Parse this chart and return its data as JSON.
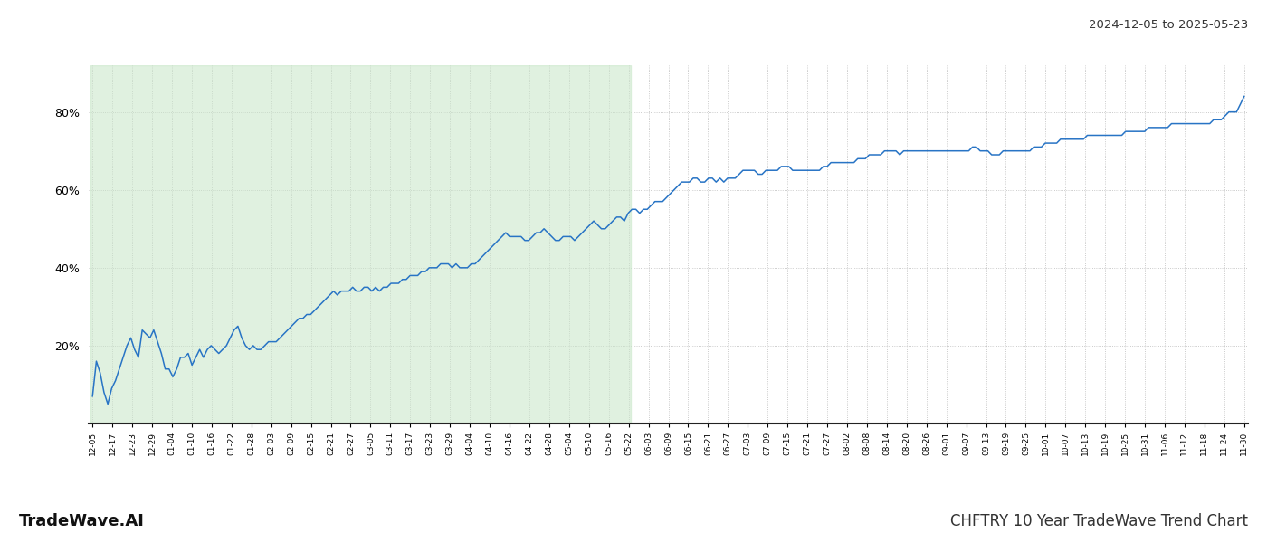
{
  "title_top_right": "2024-12-05 to 2025-05-23",
  "title_bottom_left": "TradeWave.AI",
  "title_bottom_right": "CHFTRY 10 Year TradeWave Trend Chart",
  "line_color": "#2874c5",
  "shaded_region_color": "#c8e6c8",
  "shaded_region_alpha": 0.55,
  "background_color": "#ffffff",
  "grid_color": "#bbbbbb",
  "yticks": [
    20,
    40,
    60,
    80
  ],
  "ylim": [
    0,
    92
  ],
  "x_labels": [
    "12-05",
    "12-17",
    "12-23",
    "12-29",
    "01-04",
    "01-10",
    "01-16",
    "01-22",
    "01-28",
    "02-03",
    "02-09",
    "02-15",
    "02-21",
    "02-27",
    "03-05",
    "03-11",
    "03-17",
    "03-23",
    "03-29",
    "04-04",
    "04-10",
    "04-16",
    "04-22",
    "04-28",
    "05-04",
    "05-10",
    "05-16",
    "05-22",
    "06-03",
    "06-09",
    "06-15",
    "06-21",
    "06-27",
    "07-03",
    "07-09",
    "07-15",
    "07-21",
    "07-27",
    "08-02",
    "08-08",
    "08-14",
    "08-20",
    "08-26",
    "09-01",
    "09-07",
    "09-13",
    "09-19",
    "09-25",
    "10-01",
    "10-07",
    "10-13",
    "10-19",
    "10-25",
    "10-31",
    "11-06",
    "11-12",
    "11-18",
    "11-24",
    "11-30"
  ],
  "shaded_start_label": "12-05",
  "shaded_end_label": "05-22",
  "y_values": [
    7,
    16,
    13,
    8,
    5,
    9,
    11,
    14,
    17,
    20,
    22,
    19,
    17,
    24,
    23,
    22,
    24,
    21,
    18,
    14,
    14,
    12,
    14,
    17,
    17,
    18,
    15,
    17,
    19,
    17,
    19,
    20,
    19,
    18,
    19,
    20,
    22,
    24,
    25,
    22,
    20,
    19,
    20,
    19,
    19,
    20,
    21,
    21,
    21,
    22,
    23,
    24,
    25,
    26,
    27,
    27,
    28,
    28,
    29,
    30,
    31,
    32,
    33,
    34,
    33,
    34,
    34,
    34,
    35,
    34,
    34,
    35,
    35,
    34,
    35,
    34,
    35,
    35,
    36,
    36,
    36,
    37,
    37,
    38,
    38,
    38,
    39,
    39,
    40,
    40,
    40,
    41,
    41,
    41,
    40,
    41,
    40,
    40,
    40,
    41,
    41,
    42,
    43,
    44,
    45,
    46,
    47,
    48,
    49,
    48,
    48,
    48,
    48,
    47,
    47,
    48,
    49,
    49,
    50,
    49,
    48,
    47,
    47,
    48,
    48,
    48,
    47,
    48,
    49,
    50,
    51,
    52,
    51,
    50,
    50,
    51,
    52,
    53,
    53,
    52,
    54,
    55,
    55,
    54,
    55,
    55,
    56,
    57,
    57,
    57,
    58,
    59,
    60,
    61,
    62,
    62,
    62,
    63,
    63,
    62,
    62,
    63,
    63,
    62,
    63,
    62,
    63,
    63,
    63,
    64,
    65,
    65,
    65,
    65,
    64,
    64,
    65,
    65,
    65,
    65,
    66,
    66,
    66,
    65,
    65,
    65,
    65,
    65,
    65,
    65,
    65,
    66,
    66,
    67,
    67,
    67,
    67,
    67,
    67,
    67,
    68,
    68,
    68,
    69,
    69,
    69,
    69,
    70,
    70,
    70,
    70,
    69,
    70,
    70,
    70,
    70,
    70,
    70,
    70,
    70,
    70,
    70,
    70,
    70,
    70,
    70,
    70,
    70,
    70,
    70,
    71,
    71,
    70,
    70,
    70,
    69,
    69,
    69,
    70,
    70,
    70,
    70,
    70,
    70,
    70,
    70,
    71,
    71,
    71,
    72,
    72,
    72,
    72,
    73,
    73,
    73,
    73,
    73,
    73,
    73,
    74,
    74,
    74,
    74,
    74,
    74,
    74,
    74,
    74,
    74,
    75,
    75,
    75,
    75,
    75,
    75,
    76,
    76,
    76,
    76,
    76,
    76,
    77,
    77,
    77,
    77,
    77,
    77,
    77,
    77,
    77,
    77,
    77,
    78,
    78,
    78,
    79,
    80,
    80,
    80,
    82,
    84
  ]
}
